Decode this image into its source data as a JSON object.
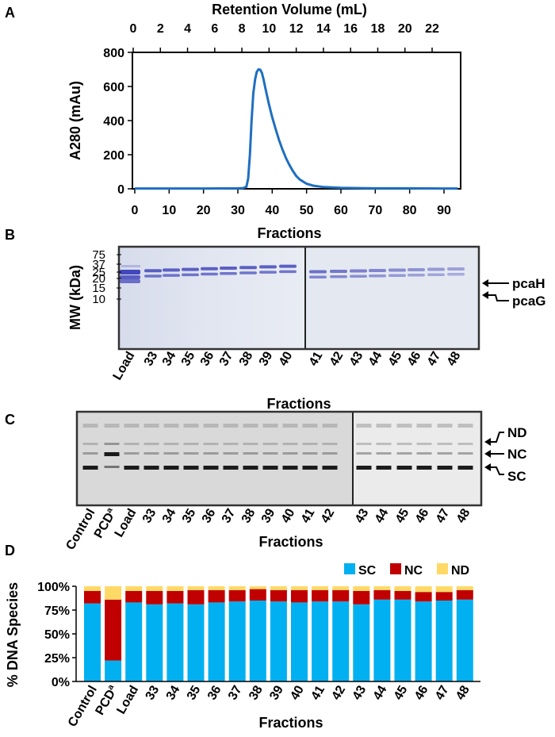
{
  "panels": {
    "A": "A",
    "B": "B",
    "C": "C",
    "D": "D"
  },
  "colors": {
    "trace": "#1f6fc0",
    "sc": "#00b0f0",
    "nc": "#c00000",
    "nd": "#ffd966",
    "coomassie": "#3a3fb8"
  },
  "chart_data": [
    {
      "type": "line",
      "panel": "A",
      "xlabel": "Fractions",
      "x2label": "Retention Volume (mL)",
      "ylabel": "A280 (mAu)",
      "xlim": [
        0,
        94
      ],
      "ylim": [
        0,
        800
      ],
      "xticks": [
        "0",
        "10",
        "20",
        "30",
        "40",
        "50",
        "60",
        "70",
        "80",
        "90"
      ],
      "x2ticks": [
        "0",
        "2",
        "4",
        "6",
        "8",
        "10",
        "12",
        "14",
        "16",
        "18",
        "20",
        "22"
      ],
      "yticks": [
        "0",
        "200",
        "400",
        "600",
        "800"
      ],
      "series": [
        {
          "x": [
            0,
            10,
            20,
            30,
            31.5,
            32.5,
            33,
            33.5,
            34,
            34.5,
            35,
            35.5,
            36,
            36.5,
            37,
            37.5,
            38,
            39,
            40,
            41,
            42,
            43,
            44,
            45,
            46,
            47,
            48,
            50,
            52,
            55,
            60,
            65,
            70,
            80,
            90,
            94
          ],
          "y": [
            2,
            2,
            2,
            3,
            4,
            12,
            60,
            200,
            400,
            560,
            640,
            685,
            700,
            698,
            680,
            640,
            590,
            500,
            420,
            350,
            285,
            230,
            180,
            140,
            105,
            75,
            55,
            30,
            18,
            10,
            6,
            4,
            3,
            3,
            2,
            2
          ]
        }
      ]
    },
    {
      "type": "stacked-bar",
      "panel": "D",
      "xlabel": "Fractions",
      "ylabel": "% DNA Species",
      "ylim": [
        0,
        100
      ],
      "yticks": [
        "0%",
        "25%",
        "50%",
        "75%",
        "100%"
      ],
      "legend_position": "top-right",
      "categories": [
        "Control",
        "PCDª",
        "Load",
        "33",
        "34",
        "35",
        "36",
        "37",
        "38",
        "39",
        "40",
        "41",
        "42",
        "43",
        "44",
        "45",
        "46",
        "47",
        "48"
      ],
      "series": [
        {
          "name": "SC",
          "values": [
            82,
            22,
            83,
            81,
            82,
            81,
            83,
            84,
            85,
            84,
            83,
            84,
            84,
            81,
            86,
            86,
            84,
            85,
            86
          ]
        },
        {
          "name": "NC",
          "values": [
            13,
            64,
            12,
            14,
            13,
            15,
            13,
            12,
            12,
            12,
            13,
            12,
            12,
            14,
            10,
            9,
            10,
            9,
            10
          ]
        },
        {
          "name": "ND",
          "values": [
            5,
            14,
            5,
            5,
            5,
            4,
            4,
            4,
            3,
            4,
            4,
            4,
            4,
            5,
            4,
            5,
            6,
            6,
            4
          ]
        }
      ]
    }
  ],
  "gel_b": {
    "ylabel": "MW (kDa)",
    "xlabel": "Fractions",
    "mw_ticks": [
      "75",
      "37",
      "25",
      "20",
      "15",
      "10"
    ],
    "lanes": [
      "Load",
      "33",
      "34",
      "35",
      "36",
      "37",
      "38",
      "39",
      "40",
      "41",
      "42",
      "43",
      "44",
      "45",
      "46",
      "47",
      "48"
    ],
    "band_labels": [
      "pcaH",
      "pcaG"
    ]
  },
  "gel_c": {
    "xlabel": "Fractions",
    "lanes": [
      "Control",
      "PCDª",
      "Load",
      "33",
      "34",
      "35",
      "36",
      "37",
      "38",
      "39",
      "40",
      "41",
      "42",
      "43",
      "44",
      "45",
      "46",
      "47",
      "48"
    ],
    "band_labels": [
      "ND",
      "NC",
      "SC"
    ]
  }
}
